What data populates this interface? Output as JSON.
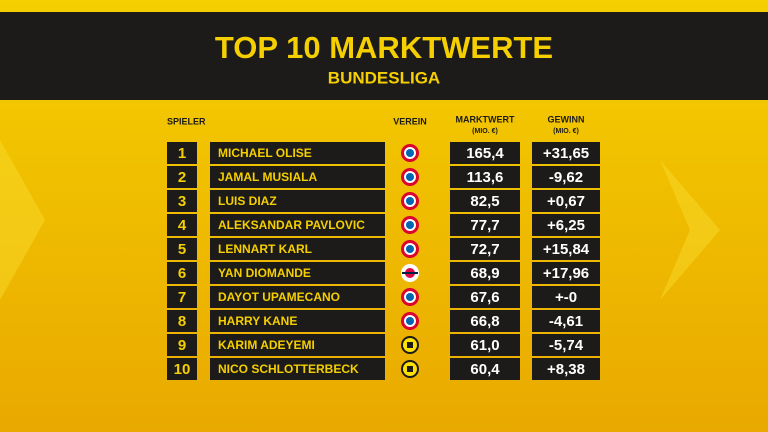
{
  "header": {
    "title": "TOP 10 MARKTWERTE",
    "subtitle": "BUNDESLIGA"
  },
  "table": {
    "headers": {
      "player": "SPIELER",
      "club": "VEREIN",
      "value": "MARKTWERT",
      "value_unit": "(MIO. €)",
      "gain": "GEWINN",
      "gain_unit": "(MIO. €)"
    },
    "rows": [
      [
        "1",
        "MICHAEL OLISE",
        "165,4",
        "+31,65"
      ],
      [
        "2",
        "JAMAL MUSIALA",
        "113,6",
        "-9,62"
      ],
      [
        "3",
        "LUIS DIAZ",
        "82,5",
        "+0,67"
      ],
      [
        "4",
        "ALEKSANDAR PAVLOVIC",
        "77,7",
        "+6,25"
      ],
      [
        "5",
        "LENNART KARL",
        "72,7",
        "+15,84"
      ],
      [
        "6",
        "YAN DIOMANDE",
        "68,9",
        "+17,96"
      ],
      [
        "7",
        "DAYOT UPAMECANO",
        "67,6",
        "+-0"
      ],
      [
        "8",
        "HARRY KANE",
        "66,8",
        "-4,61"
      ],
      [
        "9",
        "KARIM ADEYEMI",
        "61,0",
        "-5,74"
      ],
      [
        "10",
        "NICO SCHLOTTERBECK",
        "60,4",
        "+8,38"
      ]
    ]
  }
}
